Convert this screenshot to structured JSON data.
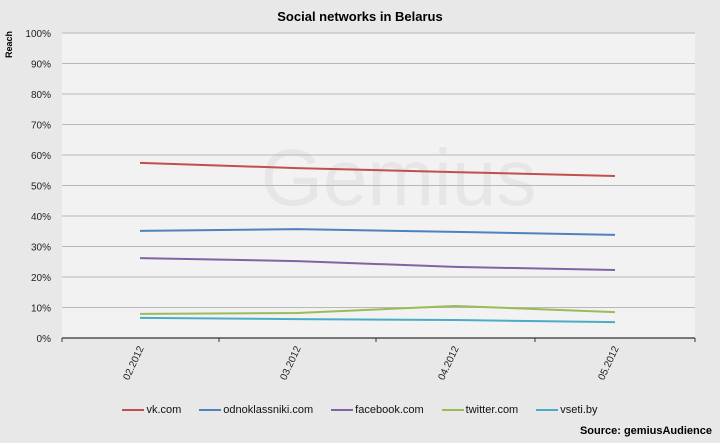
{
  "chart_data": {
    "type": "line",
    "title": "Social networks in Belarus",
    "xlabel": "",
    "ylabel": "Reach",
    "ylim": [
      0,
      100
    ],
    "yticks": [
      "0%",
      "10%",
      "20%",
      "30%",
      "40%",
      "50%",
      "60%",
      "70%",
      "80%",
      "90%",
      "100%"
    ],
    "categories": [
      "02.2012",
      "03.2012",
      "04.2012",
      "05.2012"
    ],
    "grid": true,
    "legend_position": "bottom",
    "series": [
      {
        "name": "vk.com",
        "color": "#c0504d",
        "values": [
          57.4,
          55.7,
          54.4,
          53.1
        ]
      },
      {
        "name": "odnoklassniki.com",
        "color": "#4f81bd",
        "values": [
          35.1,
          35.7,
          34.8,
          33.8
        ]
      },
      {
        "name": "facebook.com",
        "color": "#8064a2",
        "values": [
          26.2,
          25.2,
          23.3,
          22.3
        ]
      },
      {
        "name": "twitter.com",
        "color": "#9bbb59",
        "values": [
          7.9,
          8.2,
          10.5,
          8.5
        ]
      },
      {
        "name": "vseti.by",
        "color": "#4bacc6",
        "values": [
          6.6,
          6.2,
          5.9,
          5.2
        ]
      }
    ],
    "source": "Source: gemiusAudience",
    "watermark": "Gemius"
  }
}
